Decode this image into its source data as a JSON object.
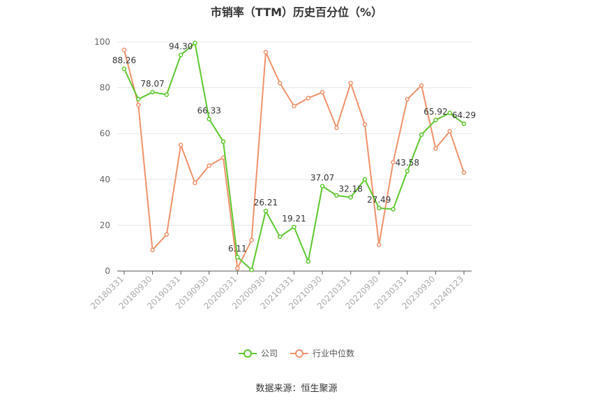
{
  "chart_data": {
    "type": "line",
    "title": "市销率（TTM）历史百分位（%）",
    "ylim": [
      0,
      100
    ],
    "y_ticks": [
      0,
      20,
      40,
      60,
      80,
      100
    ],
    "x_tick_labels": [
      "20180331",
      "20180930",
      "20190331",
      "20190930",
      "20200331",
      "20200930",
      "20210331",
      "20210930",
      "20220331",
      "20220930",
      "20230331",
      "20230930",
      "20240123"
    ],
    "grid": true,
    "legend_position": "bottom",
    "series": [
      {
        "name": "公司",
        "color": "#5cc72d",
        "values": [
          88.26,
          75,
          78.07,
          77,
          94.3,
          99.5,
          66.33,
          56.5,
          6.11,
          0.5,
          26.21,
          15,
          19.21,
          4.2,
          37.07,
          33,
          32.18,
          40,
          27.49,
          27,
          43.58,
          59.5,
          65.92,
          69,
          64.29
        ],
        "labels": {
          "0": "88.26",
          "2": "78.07",
          "4": "94.30",
          "6": "66.33",
          "8": "6.11",
          "10": "26.21",
          "12": "19.21",
          "14": "37.07",
          "16": "32.18",
          "18": "27.49",
          "20": "43.58",
          "22": "65.92",
          "24": "64.29"
        }
      },
      {
        "name": "行业中位数",
        "color": "#f0916a",
        "values": [
          96.5,
          72.5,
          9.2,
          16,
          55,
          38.5,
          46,
          49.5,
          1.2,
          13.5,
          95.5,
          82,
          72,
          75.5,
          78,
          62.5,
          82,
          64,
          11.5,
          47.5,
          75,
          81,
          53.5,
          61,
          43
        ]
      }
    ]
  },
  "source": "数据来源：恒生聚源"
}
